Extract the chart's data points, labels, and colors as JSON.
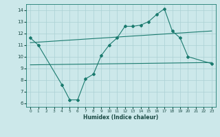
{
  "xlabel": "Humidex (Indice chaleur)",
  "xlim": [
    -0.5,
    23.5
  ],
  "ylim": [
    5.7,
    14.5
  ],
  "yticks": [
    6,
    7,
    8,
    9,
    10,
    11,
    12,
    13,
    14
  ],
  "xticks": [
    0,
    1,
    2,
    3,
    4,
    5,
    6,
    7,
    8,
    9,
    10,
    11,
    12,
    13,
    14,
    15,
    16,
    17,
    18,
    19,
    20,
    21,
    22,
    23
  ],
  "bg_color": "#cce8ea",
  "grid_color": "#aad0d4",
  "line_color": "#1a7a6e",
  "line1_x": [
    0,
    1,
    4,
    5,
    6,
    7,
    8,
    9,
    10,
    11,
    12,
    13,
    14,
    15,
    16,
    17,
    18,
    19,
    20,
    23
  ],
  "line1_y": [
    11.6,
    11.0,
    7.6,
    6.3,
    6.3,
    8.1,
    8.5,
    10.1,
    11.0,
    11.6,
    12.6,
    12.6,
    12.7,
    13.0,
    13.6,
    14.1,
    12.2,
    11.6,
    10.0,
    9.4
  ],
  "line2_x": [
    0,
    23
  ],
  "line2_y": [
    11.2,
    12.2
  ],
  "line3_x": [
    0,
    23
  ],
  "line3_y": [
    9.3,
    9.5
  ],
  "figsize": [
    3.2,
    2.0
  ],
  "dpi": 100
}
